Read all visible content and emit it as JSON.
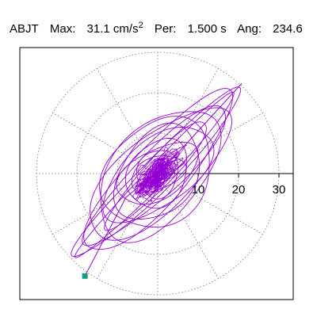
{
  "header": {
    "station": "ABJT",
    "max_label": "Max:",
    "max_value": "31.1 cm/s",
    "max_exp": "2",
    "per_label": "Per:",
    "per_value": "1.500 s",
    "ang_label": "Ang:",
    "ang_value": "234.6"
  },
  "chart_data": {
    "type": "line",
    "title": "ABJT   Max:  31.1 cm/s2  Per:  1.500 s   Ang: 234.6",
    "coordinate_system": "polar",
    "r_ticks": [
      10,
      20,
      30
    ],
    "r_tick_labels": [
      "10",
      "20",
      "30"
    ],
    "r_range": [
      0,
      35
    ],
    "radial_grid_every_deg": 30,
    "grid": true,
    "max_amplitude": 31.1,
    "max_angle_deg": 234.6,
    "period_s": 1.5,
    "series": [
      {
        "color": "#9400d3",
        "orbit_ellipses": [
          {
            "a": 29,
            "b": 4,
            "angle": 45
          },
          {
            "a": 26,
            "b": 7,
            "angle": 48
          },
          {
            "a": 22,
            "b": 9,
            "angle": 42
          },
          {
            "a": 19,
            "b": 11,
            "angle": 50
          },
          {
            "a": 16,
            "b": 8,
            "angle": 38
          },
          {
            "a": 24,
            "b": 5.5,
            "angle": 44
          },
          {
            "a": 13,
            "b": 9,
            "angle": 55
          },
          {
            "a": 11,
            "b": 6,
            "angle": 30
          },
          {
            "a": 9,
            "b": 7,
            "angle": 60
          },
          {
            "a": 7,
            "b": 4,
            "angle": 20
          },
          {
            "a": 6,
            "b": 5,
            "angle": 80
          },
          {
            "a": 18,
            "b": 3.5,
            "angle": 47
          },
          {
            "a": 28,
            "b": 2.5,
            "angle": 46
          },
          {
            "a": 15,
            "b": 12,
            "angle": 45
          }
        ]
      }
    ],
    "max_marker": {
      "color": "#1a9a80"
    }
  }
}
